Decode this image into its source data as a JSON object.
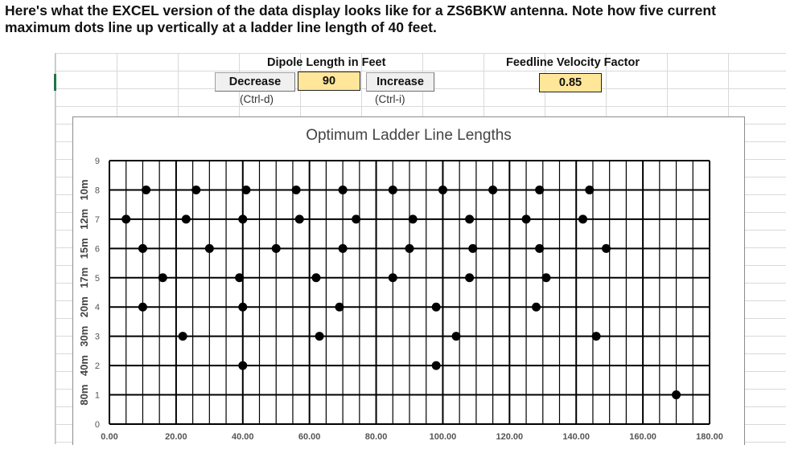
{
  "caption": "Here's what the EXCEL version of the data display looks like for a ZS6BKW antenna. Note how five current maximum dots line up vertically at a ladder line length of 40 feet.",
  "controls": {
    "dipole_title": "Dipole Length in Feet",
    "decrease_label": "Decrease",
    "dipole_value": "90",
    "increase_label": "Increase",
    "decrease_hint": "(Ctrl-d)",
    "increase_hint": "(Ctrl-i)",
    "vf_title": "Feedline Velocity Factor",
    "vf_value": "0.85"
  },
  "colors": {
    "value_fill": "#ffe699",
    "grid_line": "#000000",
    "dot": "#000000",
    "sheet_grid": "#d9d9d9"
  },
  "chart_data": {
    "type": "scatter",
    "title": "Optimum Ladder Line Lengths",
    "xlabel": "",
    "ylabel": "",
    "band_labels": [
      "80m",
      "40m",
      "30m",
      "20m",
      "17m",
      "15m",
      "12m",
      "10m"
    ],
    "xlim": [
      0,
      180
    ],
    "ylim": [
      0,
      9
    ],
    "x_ticks": [
      "0.00",
      "20.00",
      "40.00",
      "60.00",
      "80.00",
      "100.00",
      "120.00",
      "140.00",
      "160.00",
      "180.00"
    ],
    "y_ticks": [
      "0",
      "1",
      "2",
      "3",
      "4",
      "5",
      "6",
      "7",
      "8",
      "9"
    ],
    "grid": true,
    "x_minor_step": 5,
    "legend": "none",
    "points": [
      [
        170,
        1
      ],
      [
        40,
        2
      ],
      [
        98,
        2
      ],
      [
        22,
        3
      ],
      [
        63,
        3
      ],
      [
        104,
        3
      ],
      [
        146,
        3
      ],
      [
        10,
        4
      ],
      [
        40,
        4
      ],
      [
        69,
        4
      ],
      [
        98,
        4
      ],
      [
        128,
        4
      ],
      [
        16,
        5
      ],
      [
        39,
        5
      ],
      [
        62,
        5
      ],
      [
        85,
        5
      ],
      [
        108,
        5
      ],
      [
        131,
        5
      ],
      [
        10,
        6
      ],
      [
        30,
        6
      ],
      [
        50,
        6
      ],
      [
        70,
        6
      ],
      [
        90,
        6
      ],
      [
        109,
        6
      ],
      [
        129,
        6
      ],
      [
        149,
        6
      ],
      [
        5,
        7
      ],
      [
        23,
        7
      ],
      [
        40,
        7
      ],
      [
        57,
        7
      ],
      [
        74,
        7
      ],
      [
        91,
        7
      ],
      [
        108,
        7
      ],
      [
        125,
        7
      ],
      [
        142,
        7
      ],
      [
        11,
        8
      ],
      [
        26,
        8
      ],
      [
        41,
        8
      ],
      [
        56,
        8
      ],
      [
        70,
        8
      ],
      [
        85,
        8
      ],
      [
        100,
        8
      ],
      [
        115,
        8
      ],
      [
        129,
        8
      ],
      [
        144,
        8
      ]
    ]
  }
}
